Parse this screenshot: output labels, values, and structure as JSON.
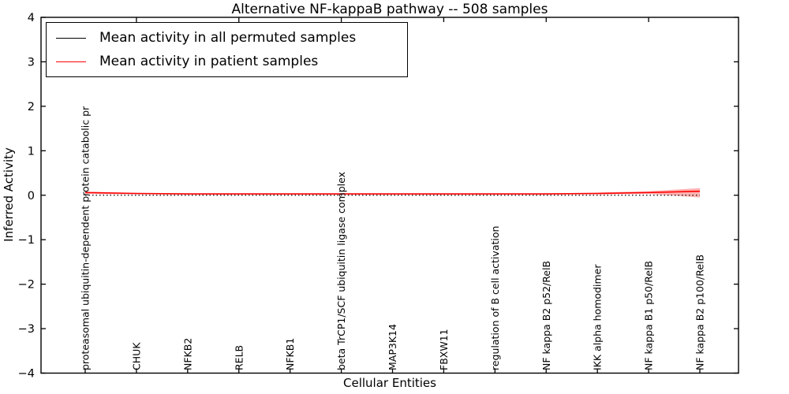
{
  "chart_data": {
    "type": "line",
    "title": "Alternative NF-kappaB pathway -- 508 samples",
    "xlabel": "Cellular Entities",
    "ylabel": "Inferred Activity",
    "ylim": [
      -4,
      4
    ],
    "yticks": [
      4,
      3,
      2,
      1,
      0,
      -1,
      -2,
      -3,
      -4
    ],
    "ytick_labels": [
      "4",
      "3",
      "2",
      "1",
      "0",
      "−1",
      "−2",
      "−3",
      "−4"
    ],
    "grid": false,
    "categories": [
      "proteasomal ubiquitin-dependent protein catabolic pr",
      "CHUK",
      "NFKB2",
      "RELB",
      "NFKB1",
      "beta TrCP1/SCF ubiquitin ligase complex",
      "MAP3K14",
      "FBXW11",
      "regulation of B cell activation",
      "NF kappa B2 p52/RelB",
      "IKK alpha homodimer",
      "NF kappa B1 p50/RelB",
      "NF kappa B2 p100/RelB"
    ],
    "series": [
      {
        "name": "Mean activity in all permuted samples",
        "color": "#000000",
        "style": "dotted",
        "values": [
          0,
          0,
          0,
          0,
          0,
          0,
          0,
          0,
          0,
          0,
          0,
          0,
          0
        ]
      },
      {
        "name": "Mean activity in patient samples",
        "color": "#ff0000",
        "style": "solid",
        "values": [
          0.06,
          0.04,
          0.03,
          0.03,
          0.03,
          0.03,
          0.03,
          0.03,
          0.03,
          0.03,
          0.04,
          0.06,
          0.09
        ]
      }
    ],
    "band": {
      "series": "Mean activity in patient samples",
      "upper": [
        0.08,
        0.05,
        0.04,
        0.04,
        0.04,
        0.04,
        0.04,
        0.04,
        0.04,
        0.04,
        0.06,
        0.09,
        0.16
      ],
      "lower": [
        0.03,
        0.02,
        0.02,
        0.02,
        0.02,
        0.02,
        0.02,
        0.02,
        0.02,
        0.02,
        0.02,
        0.03,
        -0.05
      ],
      "color": "#ff0000",
      "opacity": 0.3
    },
    "legend": {
      "position": "upper left",
      "entries": [
        {
          "label": "Mean activity in all permuted samples",
          "color": "#000000"
        },
        {
          "label": "Mean activity in patient samples",
          "color": "#ff0000"
        }
      ]
    }
  }
}
